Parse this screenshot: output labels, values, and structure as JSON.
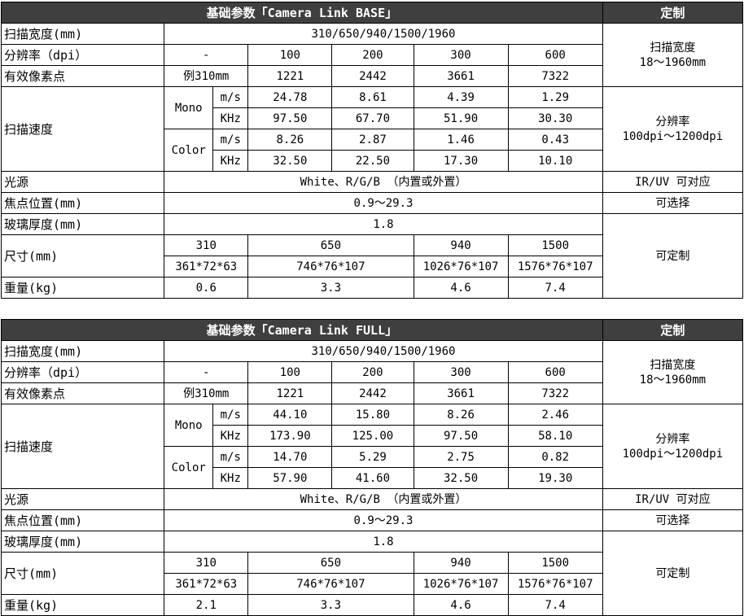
{
  "tables": [
    {
      "title": "基础参数「Camera Link BASE」",
      "custom_header": "定制",
      "scan_width": {
        "label": "扫描宽度(mm)",
        "value": "310/650/940/1500/1960",
        "custom": "扫描宽度\n18～1960mm"
      },
      "resolution": {
        "label": "分辨率（dpi）",
        "first": "-",
        "values": [
          "100",
          "200",
          "300",
          "600"
        ]
      },
      "pixels": {
        "label": "有效像素点",
        "first": "例310mm",
        "values": [
          "1221",
          "2442",
          "3661",
          "7322"
        ]
      },
      "speed": {
        "label": "扫描速度",
        "custom": "分辨率\n100dpi～1200dpi",
        "groups": [
          {
            "name": "Mono",
            "rows": [
              {
                "unit": "m/s",
                "values": [
                  "24.78",
                  "8.61",
                  "4.39",
                  "1.29"
                ]
              },
              {
                "unit": "KHz",
                "values": [
                  "97.50",
                  "67.70",
                  "51.90",
                  "30.30"
                ]
              }
            ]
          },
          {
            "name": "Color",
            "rows": [
              {
                "unit": "m/s",
                "values": [
                  "8.26",
                  "2.87",
                  "1.46",
                  "0.43"
                ]
              },
              {
                "unit": "KHz",
                "values": [
                  "32.50",
                  "22.50",
                  "17.30",
                  "10.10"
                ]
              }
            ]
          }
        ]
      },
      "light": {
        "label": "光源",
        "value": "White、R/G/B  （内置或外置）",
        "custom": "IR/UV 可对应"
      },
      "focus": {
        "label": "焦点位置(mm)",
        "value": "0.9～29.3",
        "custom": "可选择"
      },
      "glass": {
        "label": "玻璃厚度(mm)",
        "value": "1.8",
        "custom": "可定制"
      },
      "size": {
        "label": "尺寸(mm)",
        "widths": [
          "310",
          "650",
          "940",
          "1500"
        ],
        "dims": [
          "361*72*63",
          "746*76*107",
          "1026*76*107",
          "1576*76*107"
        ]
      },
      "weight": {
        "label": "重量(kg)",
        "values": [
          "0.6",
          "3.3",
          "4.6",
          "7.4"
        ]
      }
    },
    {
      "title": "基础参数「Camera Link FULL」",
      "custom_header": "定制",
      "scan_width": {
        "label": "扫描宽度(mm)",
        "value": "310/650/940/1500/1960",
        "custom": "扫描宽度\n18～1960mm"
      },
      "resolution": {
        "label": "分辨率（dpi）",
        "first": "-",
        "values": [
          "100",
          "200",
          "300",
          "600"
        ]
      },
      "pixels": {
        "label": "有效像素点",
        "first": "例310mm",
        "values": [
          "1221",
          "2442",
          "3661",
          "7322"
        ]
      },
      "speed": {
        "label": "扫描速度",
        "custom": "分辨率\n100dpi～1200dpi",
        "groups": [
          {
            "name": "Mono",
            "rows": [
              {
                "unit": "m/s",
                "values": [
                  "44.10",
                  "15.80",
                  "8.26",
                  "2.46"
                ]
              },
              {
                "unit": "KHz",
                "values": [
                  "173.90",
                  "125.00",
                  "97.50",
                  "58.10"
                ]
              }
            ]
          },
          {
            "name": "Color",
            "rows": [
              {
                "unit": "m/s",
                "values": [
                  "14.70",
                  "5.29",
                  "2.75",
                  "0.82"
                ]
              },
              {
                "unit": "KHz",
                "values": [
                  "57.90",
                  "41.60",
                  "32.50",
                  "19.30"
                ]
              }
            ]
          }
        ]
      },
      "light": {
        "label": "光源",
        "value": "White、R/G/B  （内置或外置）",
        "custom": "IR/UV 可对应"
      },
      "focus": {
        "label": "焦点位置(mm)",
        "value": "0.9～29.3",
        "custom": "可选择"
      },
      "glass": {
        "label": "玻璃厚度(mm)",
        "value": "1.8",
        "custom": "可定制"
      },
      "size": {
        "label": "尺寸(mm)",
        "widths": [
          "310",
          "650",
          "940",
          "1500"
        ],
        "dims": [
          "361*72*63",
          "746*76*107",
          "1026*76*107",
          "1576*76*107"
        ]
      },
      "weight": {
        "label": "重量(kg)",
        "values": [
          "2.1",
          "3.3",
          "4.6",
          "7.4"
        ]
      }
    }
  ]
}
